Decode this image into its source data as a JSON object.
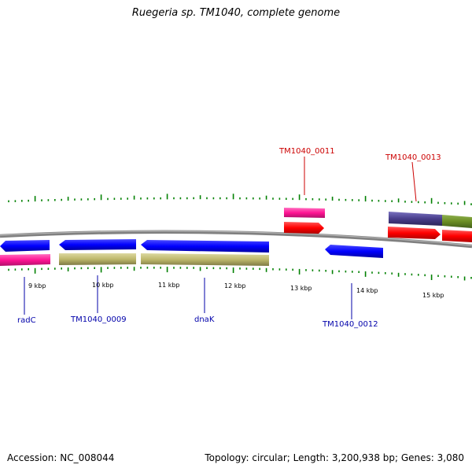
{
  "title": "Ruegeria sp. TM1040, complete genome",
  "footer": {
    "accession": "Accession: NC_008044",
    "summary": "Topology: circular; Length: 3,200,938 bp; Genes: 3,080"
  },
  "scale_labels": [
    "9 kbp",
    "10 kbp",
    "11 kbp",
    "12 kbp",
    "13 kbp",
    "14 kbp",
    "15 kbp"
  ],
  "gene_labels": {
    "radC": "radC",
    "TM1040_0009": "TM1040_0009",
    "dnaK": "dnaK",
    "TM1040_0011": "TM1040_0011",
    "TM1040_0012": "TM1040_0012",
    "TM1040_0013": "TM1040_0013"
  },
  "colors": {
    "forward_strand_genes": "#ff0000",
    "reverse_strand_genes": "#0000ff",
    "cds_track": "#bdb76b",
    "other_feature": "#ff1493",
    "backbone": "#808080",
    "ticks": "#008000",
    "label_forward": "#cc0000",
    "label_reverse": "#0000aa"
  }
}
